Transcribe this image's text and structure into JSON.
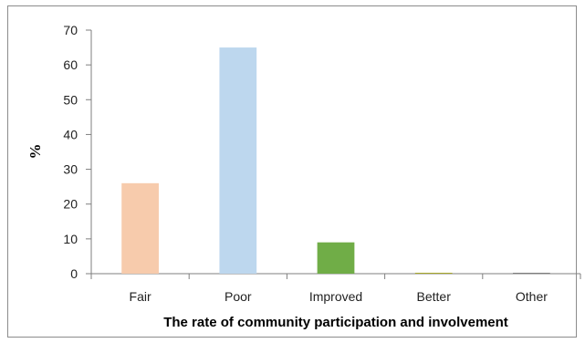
{
  "chart_data": {
    "type": "bar",
    "categories": [
      "Fair",
      "Poor",
      "Improved",
      "Better",
      "Other"
    ],
    "values": [
      26,
      65,
      9,
      0.2,
      0.1
    ],
    "colors": [
      "#f7cbac",
      "#bdd7ee",
      "#70ad47",
      "#a9a92a",
      "#7f7f7f"
    ],
    "title": "",
    "xlabel": "The rate of community participation and involvement",
    "ylabel": "%",
    "ylim": [
      0,
      70
    ],
    "yticks": [
      0,
      10,
      20,
      30,
      40,
      50,
      60,
      70
    ],
    "grid": false,
    "legend": "none"
  }
}
